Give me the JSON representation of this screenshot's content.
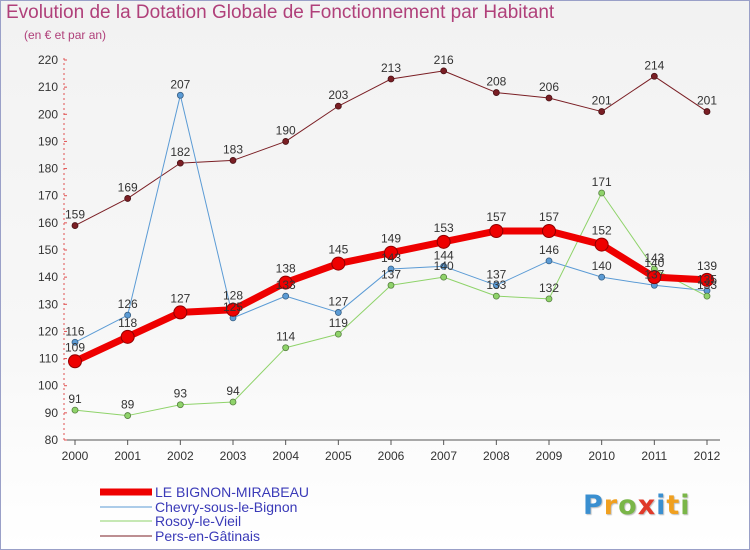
{
  "title": "Evolution de la Dotation Globale de Fonctionnement par Habitant",
  "subtitle": "(en € et par an)",
  "logo": {
    "text": "Proxiti",
    "colors": [
      "#3a8fd0",
      "#f0a020",
      "#7ab648",
      "#e03a2a",
      "#3a8fd0",
      "#f0a020",
      "#7ab648"
    ]
  },
  "chart_data": {
    "type": "line",
    "x": [
      "2000",
      "2001",
      "2002",
      "2003",
      "2004",
      "2005",
      "2006",
      "2007",
      "2008",
      "2009",
      "2010",
      "2011",
      "2012"
    ],
    "ylim": [
      80,
      220
    ],
    "yticks": [
      80,
      90,
      100,
      110,
      120,
      130,
      140,
      150,
      160,
      170,
      180,
      190,
      200,
      210,
      220
    ],
    "grid": false,
    "legend_position": "bottom-left",
    "series": [
      {
        "name": "Pers-en-Gâtinais",
        "color": "#7a1e24",
        "line_width": 1,
        "values": [
          159,
          169,
          182,
          183,
          190,
          203,
          213,
          216,
          208,
          206,
          201,
          214,
          201
        ],
        "labels": [
          "159",
          "169",
          "182",
          "183",
          "190",
          "203",
          "213",
          "216",
          "208",
          "206",
          "201",
          "214",
          "201"
        ]
      },
      {
        "name": "Chevry-sous-le-Bignon",
        "color": "#5b9bd5",
        "line_width": 1,
        "values": [
          116,
          126,
          207,
          125,
          133,
          127,
          143,
          144,
          137,
          146,
          140,
          137,
          135
        ],
        "labels": [
          "116",
          "126",
          "207",
          "125",
          "133",
          "127",
          "143",
          "144",
          "137",
          "146",
          "140",
          "137",
          "135"
        ]
      },
      {
        "name": "Rosoy-le-Vieil",
        "color": "#8fd36a",
        "line_width": 1,
        "values": [
          91,
          89,
          93,
          94,
          114,
          119,
          137,
          140,
          133,
          132,
          171,
          143,
          133
        ],
        "labels": [
          "91",
          "89",
          "93",
          "94",
          "114",
          "119",
          "137",
          "140",
          "133",
          "132",
          "171",
          "143",
          "133"
        ]
      },
      {
        "name": "LE BIGNON-MIRABEAU",
        "color": "#ee0000",
        "line_width": 7,
        "values": [
          109,
          118,
          127,
          128,
          138,
          145,
          149,
          153,
          157,
          157,
          152,
          140,
          139
        ],
        "labels": [
          "109",
          "118",
          "127",
          "128",
          "138",
          "145",
          "149",
          "153",
          "157",
          "157",
          "152",
          "140",
          "139"
        ]
      }
    ]
  },
  "legend": [
    {
      "name": "LE BIGNON-MIRABEAU",
      "color": "#ee0000",
      "thickness": 7
    },
    {
      "name": "Chevry-sous-le-Bignon",
      "color": "#5b9bd5",
      "thickness": 1
    },
    {
      "name": "Rosoy-le-Vieil",
      "color": "#8fd36a",
      "thickness": 1
    },
    {
      "name": "Pers-en-Gâtinais",
      "color": "#7a1e24",
      "thickness": 1
    }
  ]
}
